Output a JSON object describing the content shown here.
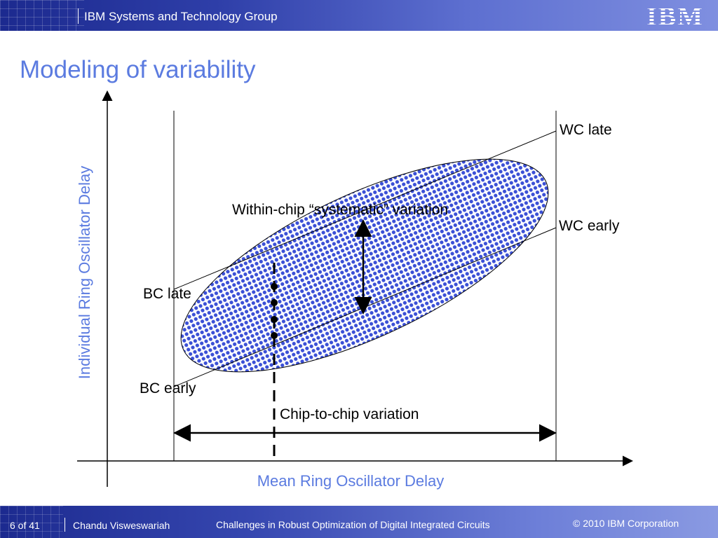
{
  "header": {
    "group": "IBM Systems and Technology Group",
    "logo_text": "IBM",
    "background": "#2e3ea8"
  },
  "slide": {
    "title": "Modeling of variability",
    "accent": "#5b7be0"
  },
  "diagram": {
    "y_axis_label": "Individual Ring Oscillator Delay",
    "x_axis_label": "Mean Ring Oscillator Delay",
    "labels": {
      "wc_late": "WC late",
      "wc_early": "WC early",
      "bc_late": "BC late",
      "bc_early": "BC early",
      "within_chip": "Within-chip “systematic” variation",
      "chip_to_chip": "Chip-to-chip variation"
    },
    "ellipse_fill": "#3a4fd6"
  },
  "footer": {
    "page": "6 of 41",
    "author": "Chandu Visweswariah",
    "talk_title": "Challenges in Robust Optimization of Digital Integrated Circuits",
    "copyright": "© 2010 IBM Corporation"
  }
}
